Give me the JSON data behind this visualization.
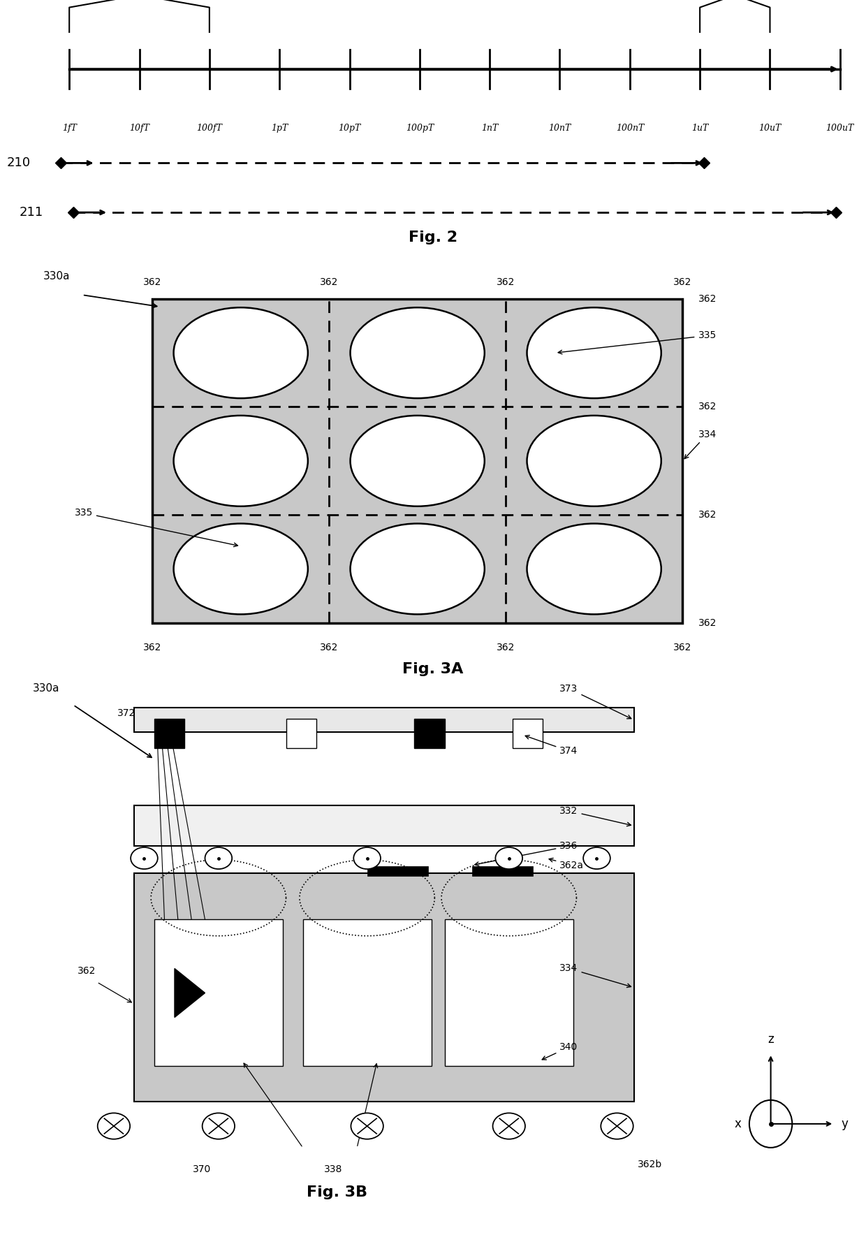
{
  "fig_width": 12.4,
  "fig_height": 17.68,
  "bg_color": "#ffffff",
  "tick_labels": [
    "1fT",
    "10fT",
    "100fT",
    "1pT",
    "10pT",
    "100pT",
    "1nT",
    "10nT",
    "100nT",
    "1uT",
    "10uT",
    "100uT"
  ],
  "gray_fill": "#c8c8c8",
  "dark_color": "#000000"
}
